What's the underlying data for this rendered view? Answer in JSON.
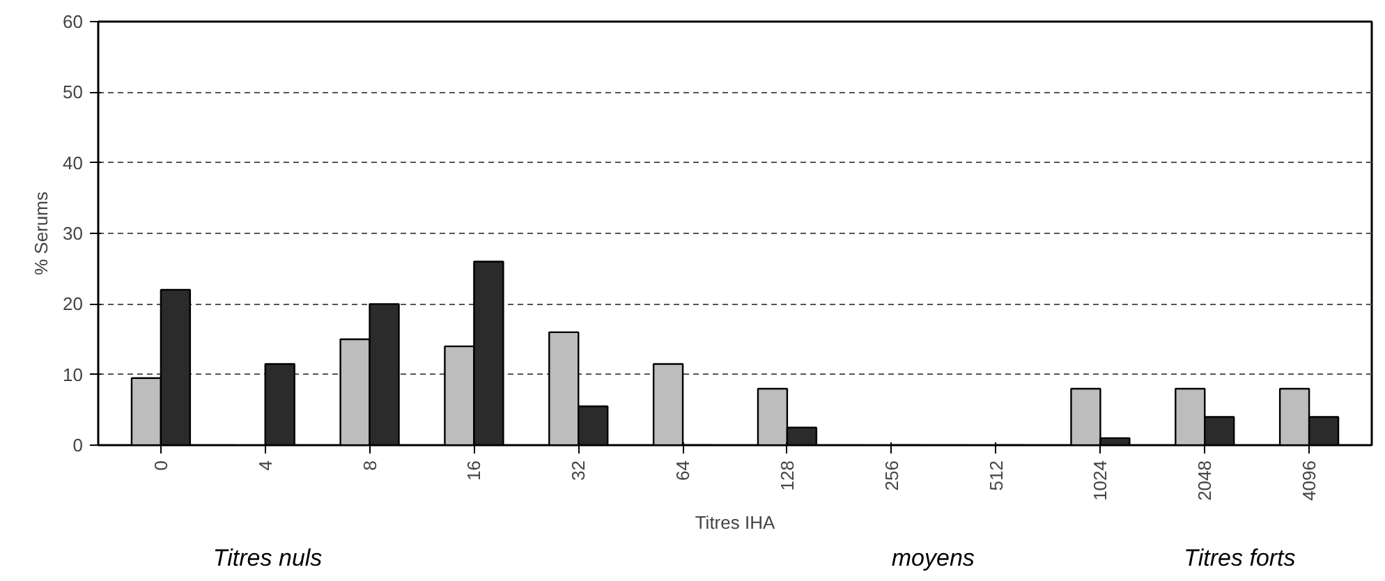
{
  "chart_data": {
    "type": "bar",
    "ylabel": "% Serums",
    "xlabel": "Titres IHA",
    "categories": [
      "0",
      "4",
      "8",
      "16",
      "32",
      "64",
      "128",
      "256",
      "512",
      "1024",
      "2048",
      "4096"
    ],
    "series": [
      {
        "color": "#bdbdbd",
        "values": [
          9.5,
          0,
          15,
          14,
          16,
          11.5,
          8,
          0,
          0,
          8,
          8,
          8
        ]
      },
      {
        "color": "#2b2b2b",
        "values": [
          22,
          11.5,
          20,
          26,
          5.5,
          0,
          2.5,
          0,
          0,
          1,
          4,
          4
        ]
      }
    ],
    "ylim": [
      0,
      60
    ],
    "yticks": [
      0,
      10,
      20,
      30,
      40,
      50,
      60
    ],
    "grid": "y",
    "annotations": [
      "Titres nuls",
      "moyens",
      "Titres forts"
    ]
  }
}
